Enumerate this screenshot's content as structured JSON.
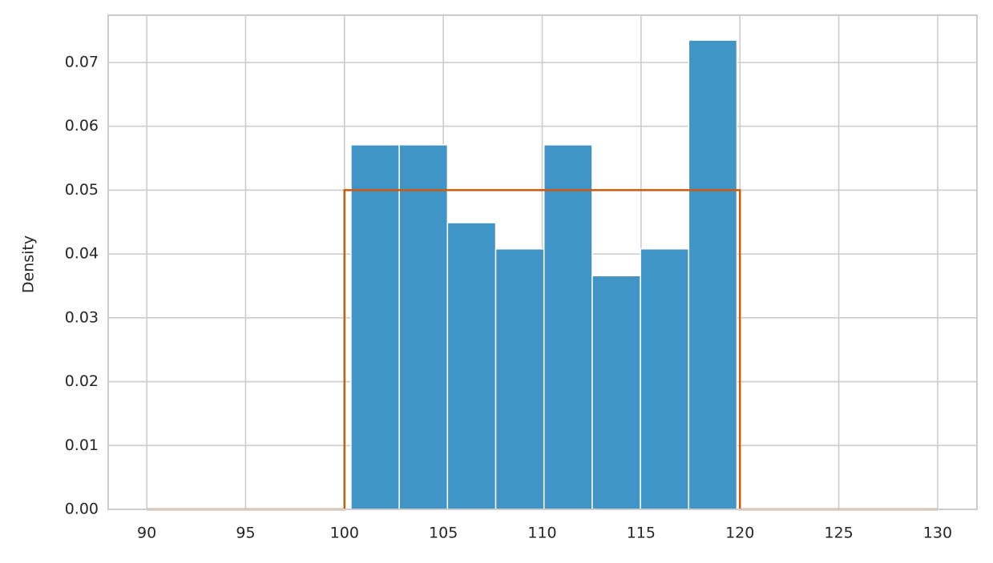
{
  "chart_data": {
    "type": "histogram",
    "ylabel": "Density",
    "bins": [
      100.33,
      102.77,
      105.21,
      107.65,
      110.09,
      112.53,
      114.97,
      117.41,
      119.85
    ],
    "values": [
      0.0571,
      0.0571,
      0.0449,
      0.0408,
      0.0571,
      0.0366,
      0.0408,
      0.0735
    ],
    "color": "#4095c6",
    "lines": [
      {
        "x": [
          90,
          100,
          100,
          120,
          120,
          130
        ],
        "values": [
          0,
          0,
          0.05,
          0.05,
          0,
          0
        ],
        "color": "#cc5a0c"
      }
    ],
    "xlim": [
      88.05,
      131.99
    ],
    "ylim": [
      0,
      0.0774
    ],
    "xticks": [
      90,
      95,
      100,
      105,
      110,
      115,
      120,
      125,
      130
    ],
    "yticks": [
      {
        "value": 0,
        "label": "0.00"
      },
      {
        "value": 0.01,
        "label": "0.01"
      },
      {
        "value": 0.02,
        "label": "0.02"
      },
      {
        "value": 0.03,
        "label": "0.03"
      },
      {
        "value": 0.04,
        "label": "0.04"
      },
      {
        "value": 0.05,
        "label": "0.05"
      },
      {
        "value": 0.06,
        "label": "0.06"
      },
      {
        "value": 0.07,
        "label": "0.07"
      }
    ],
    "grid": true
  }
}
